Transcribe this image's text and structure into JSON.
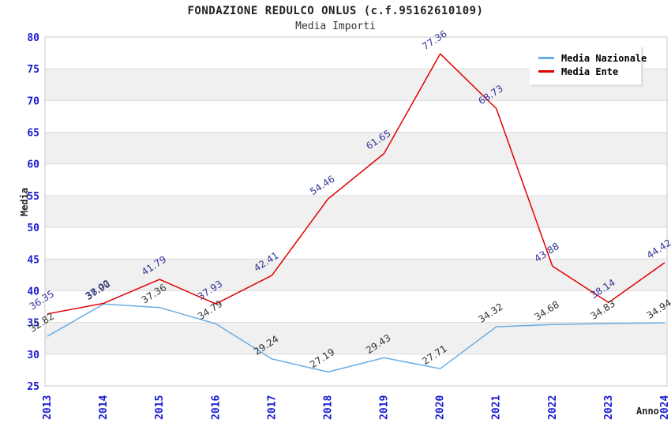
{
  "chart_data": {
    "type": "line",
    "title": "FONDAZIONE REDULCO ONLUS (c.f.95162610109)",
    "subtitle": "Media Importi",
    "xlabel": "Anno",
    "ylabel": "Media",
    "ylim": [
      25,
      80
    ],
    "ytick_step": 5,
    "grid": "horizontal-bands-alternating",
    "legend_position": "top-right",
    "categories": [
      "2013",
      "2014",
      "2015",
      "2016",
      "2017",
      "2018",
      "2019",
      "2020",
      "2021",
      "2022",
      "2023",
      "2024"
    ],
    "series": [
      {
        "name": "Media Nazionale",
        "color": "#6aade4",
        "label_color": "#333333",
        "values": [
          32.82,
          37.9,
          37.36,
          34.79,
          29.24,
          27.19,
          29.43,
          27.71,
          34.32,
          34.68,
          34.83,
          34.94
        ]
      },
      {
        "name": "Media Ente",
        "color": "#e00000",
        "label_color": "#333399",
        "values": [
          36.35,
          38.02,
          41.79,
          37.93,
          42.41,
          54.46,
          61.65,
          77.36,
          68.73,
          43.88,
          38.14,
          44.42
        ]
      }
    ],
    "style": {
      "band_fill": "#f0f0f0",
      "grid_line": "#dcdcdc",
      "plot_border": "#c8c8c8",
      "tick_label_color": "#1a1ad1"
    }
  }
}
